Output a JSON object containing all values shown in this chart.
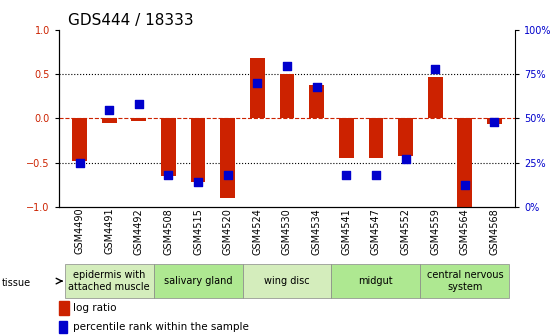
{
  "title": "GDS444 / 18333",
  "samples": [
    "GSM4490",
    "GSM4491",
    "GSM4492",
    "GSM4508",
    "GSM4515",
    "GSM4520",
    "GSM4524",
    "GSM4530",
    "GSM4534",
    "GSM4541",
    "GSM4547",
    "GSM4552",
    "GSM4559",
    "GSM4564",
    "GSM4568"
  ],
  "log_ratio": [
    -0.48,
    -0.05,
    -0.03,
    -0.65,
    -0.72,
    -0.9,
    0.68,
    0.5,
    0.38,
    -0.45,
    -0.45,
    -0.43,
    0.47,
    -1.02,
    -0.06
  ],
  "percentile": [
    25,
    55,
    58,
    18,
    14,
    18,
    70,
    80,
    68,
    18,
    18,
    27,
    78,
    12,
    48
  ],
  "tissue_groups": [
    {
      "label": "epidermis with\nattached muscle",
      "start": 0,
      "end": 3,
      "color": "#d4edbc"
    },
    {
      "label": "salivary gland",
      "start": 3,
      "end": 6,
      "color": "#aee891"
    },
    {
      "label": "wing disc",
      "start": 6,
      "end": 9,
      "color": "#d4edbc"
    },
    {
      "label": "midgut",
      "start": 9,
      "end": 12,
      "color": "#aee891"
    },
    {
      "label": "central nervous\nsystem",
      "start": 12,
      "end": 15,
      "color": "#aee891"
    }
  ],
  "bar_color": "#cc2200",
  "dot_color": "#0000cc",
  "ylim": [
    -1.0,
    1.0
  ],
  "y2lim": [
    0,
    100
  ],
  "yticks": [
    -1.0,
    -0.5,
    0.0,
    0.5,
    1.0
  ],
  "y2ticks": [
    0,
    25,
    50,
    75,
    100
  ],
  "y2ticklabels": [
    "0%",
    "25%",
    "50%",
    "75%",
    "100%"
  ],
  "hlines_dotted": [
    -0.5,
    0.5
  ],
  "hline_dashed": 0.0,
  "background_color": "#ffffff",
  "title_fontsize": 11,
  "tick_label_fontsize": 7,
  "tissue_label_fontsize": 7,
  "legend_fontsize": 7.5,
  "bar_width": 0.5,
  "dot_size": 28
}
